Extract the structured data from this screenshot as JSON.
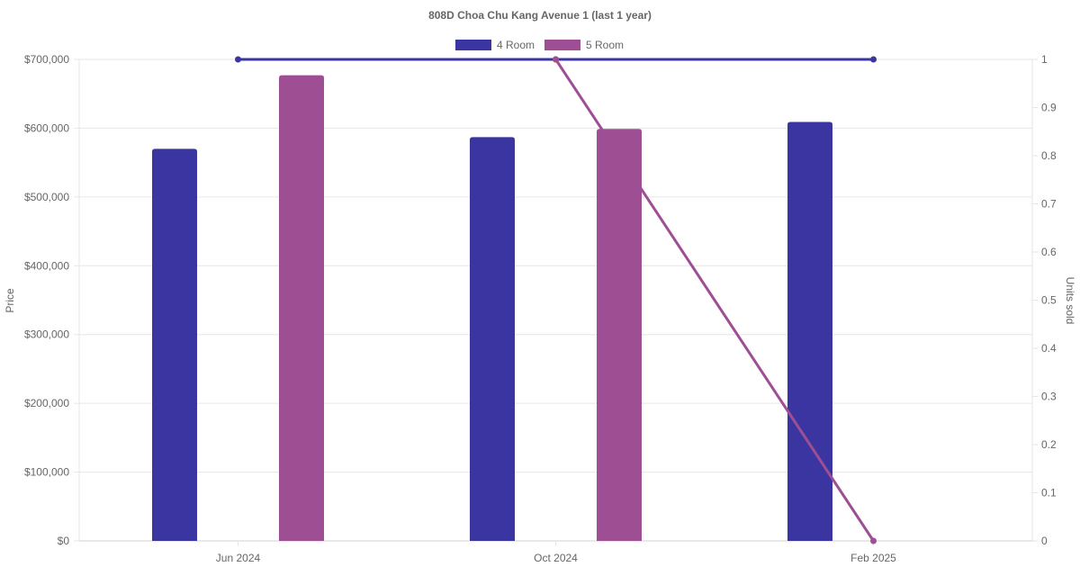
{
  "chart_data": {
    "type": "bar",
    "title": "808D Choa Chu Kang Avenue 1 (last 1 year)",
    "categories": [
      "Jun 2024",
      "Oct 2024",
      "Feb 2025"
    ],
    "ylabel": "Price",
    "y2label": "Units sold",
    "ylim": [
      0,
      700000
    ],
    "y2lim": [
      0,
      1
    ],
    "y_ticks": [
      "$0",
      "$100,000",
      "$200,000",
      "$300,000",
      "$400,000",
      "$500,000",
      "$600,000",
      "$700,000"
    ],
    "y2_ticks": [
      "0",
      "0.1",
      "0.2",
      "0.3",
      "0.4",
      "0.5",
      "0.6",
      "0.7",
      "0.8",
      "0.9",
      "1"
    ],
    "grid": true,
    "legend_position": "top-center",
    "series": [
      {
        "name": "4 Room",
        "color": "#3a35a0",
        "values": [
          570000,
          587000,
          609000
        ],
        "units_sold": [
          1,
          1,
          1
        ]
      },
      {
        "name": "5 Room",
        "color": "#9e4f93",
        "values": [
          677000,
          599000,
          null
        ],
        "units_sold": [
          null,
          1,
          0
        ]
      }
    ]
  }
}
